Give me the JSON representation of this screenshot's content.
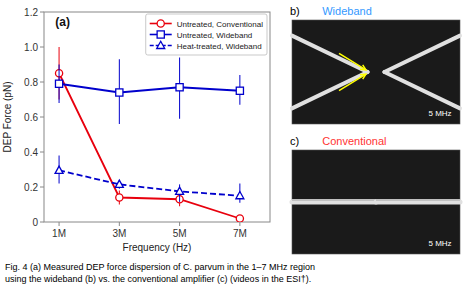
{
  "chart_data": [
    {
      "type": "line",
      "title": "(a)",
      "x_label": "Frequency (Hz)",
      "y_label": "DEP Force (pN)",
      "x": [
        1,
        3,
        5,
        7
      ],
      "xlim": [
        0.5,
        8
      ],
      "ylim": [
        0,
        1.2
      ],
      "xticks": [
        {
          "value": 1,
          "label": "1M"
        },
        {
          "value": 3,
          "label": "3M"
        },
        {
          "value": 5,
          "label": "5M"
        },
        {
          "value": 7,
          "label": "7M"
        }
      ],
      "yticks": [
        0,
        0.2,
        0.4,
        0.6,
        0.8,
        {
          "value": 1.0,
          "label": "1.0"
        },
        1.2
      ],
      "grid": false,
      "legend": "upper right",
      "series": [
        {
          "name": "Untreated, Conventional",
          "color": "#e8000d",
          "marker": "circle",
          "line_style": "solid",
          "values": [
            0.85,
            0.14,
            0.13,
            0.02
          ],
          "yerr_lo": [
            0.15,
            0.04,
            0.04,
            0.02
          ],
          "yerr_hi": [
            0.15,
            0.04,
            0.05,
            0.02
          ]
        },
        {
          "name": "Untreated, Wideband",
          "color": "#0000cc",
          "marker": "square",
          "line_style": "solid",
          "values": [
            0.79,
            0.74,
            0.77,
            0.75
          ],
          "yerr_lo": [
            0.11,
            0.18,
            0.18,
            0.08
          ],
          "yerr_hi": [
            0.11,
            0.19,
            0.17,
            0.09
          ]
        },
        {
          "name": "Heat-treated, Wideband",
          "color": "#0000cc",
          "marker": "triangle",
          "line_style": "dashed",
          "values": [
            0.295,
            0.215,
            0.175,
            0.15
          ],
          "yerr_lo": [
            0.075,
            0.025,
            0.06,
            0.04
          ],
          "yerr_hi": [
            0.085,
            0.025,
            0.04,
            0.07
          ]
        }
      ],
      "annotations": [
        {
          "text": "Fig. 4   (a) Measured DEP force dispersion of C. parvum in the 1–7 MHz region\nusing the wideband (b) vs. the conventional amplifier (c) (videos in the ESI†)."
        }
      ]
    },
    {
      "type": "image",
      "annotations": [
        {
          "text": "b)"
        },
        {
          "text": "Wideband",
          "color": "#3399ff"
        },
        {
          "text": "5 MHz"
        }
      ]
    },
    {
      "type": "image",
      "annotations": [
        {
          "text": "c)"
        },
        {
          "text": "Conventional",
          "color": "#ff3333"
        },
        {
          "text": "5 MHz"
        }
      ]
    }
  ]
}
